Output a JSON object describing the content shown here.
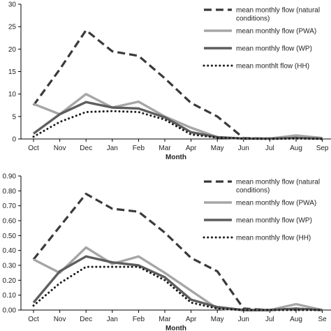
{
  "colors": {
    "natural": "#3a3a3a",
    "pwa": "#a6a6a6",
    "wp": "#5e5e5e",
    "hh": "#1a1a1a",
    "axis": "#000000"
  },
  "chart_data": [
    {
      "type": "line",
      "xlabel": "Month",
      "ylabel": "",
      "categories": [
        "Oct",
        "Nov",
        "Dec",
        "Jan",
        "Feb",
        "Mar",
        "Apr",
        "May",
        "Jun",
        "Jul",
        "Aug",
        "Sep"
      ],
      "ylim": [
        0,
        30
      ],
      "yticks": [
        "0",
        "5",
        "10",
        "15",
        "20",
        "25",
        "30"
      ],
      "legend_position": "top-right",
      "series": [
        {
          "name": "mean monthly flow (natural conditions)",
          "legend_lines": [
            "mean monthly flow (natural",
            "conditions)"
          ],
          "style": "dashed",
          "values": [
            7.5,
            15.5,
            24.2,
            19.5,
            18.5,
            13.5,
            8.0,
            5.0,
            0.2,
            0.1,
            0.3,
            0.1
          ]
        },
        {
          "name": "mean monthly flow (PWA)",
          "legend_lines": [
            "mean monthly flow (PWA)"
          ],
          "style": "light",
          "values": [
            7.8,
            5.5,
            10.0,
            7.0,
            8.3,
            5.0,
            2.5,
            0.4,
            0.1,
            0.1,
            0.8,
            0.2
          ]
        },
        {
          "name": "mean monthly flow (WP)",
          "legend_lines": [
            "mean monthly flow (WP)"
          ],
          "style": "dark",
          "values": [
            1.2,
            5.5,
            8.2,
            7.0,
            6.8,
            4.8,
            1.5,
            0.4,
            0.1,
            0.1,
            0.2,
            0.1
          ]
        },
        {
          "name": "mean monthlt flow (HH)",
          "legend_lines": [
            "mean monthlt flow (HH)"
          ],
          "style": "dotted",
          "values": [
            0.5,
            3.8,
            6.0,
            6.2,
            6.0,
            4.3,
            1.0,
            0.3,
            0.1,
            0.0,
            0.1,
            0.0
          ]
        }
      ]
    },
    {
      "type": "line",
      "xlabel": "Month",
      "ylabel": "",
      "categories": [
        "Oct",
        "Nov",
        "Dec",
        "Jan",
        "Feb",
        "Mar",
        "Apr",
        "May",
        "Jun",
        "Jul",
        "Aug",
        "Se"
      ],
      "ylim": [
        0,
        0.9
      ],
      "yticks": [
        "0.00",
        "0.10",
        "0.20",
        "0.30",
        "0.40",
        "0.50",
        "0.60",
        "0.70",
        "0.80",
        "0.90"
      ],
      "legend_position": "top-right",
      "series": [
        {
          "name": "mean monthly flow (natural conditions)",
          "legend_lines": [
            "mean monthly flow (natural",
            "conditions)"
          ],
          "style": "dashed",
          "values": [
            0.34,
            0.56,
            0.78,
            0.68,
            0.66,
            0.52,
            0.35,
            0.26,
            0.01,
            0.0,
            0.01,
            0.0
          ]
        },
        {
          "name": "mean monthly flow (PWA)",
          "legend_lines": [
            "mean monthly flow (PWA)"
          ],
          "style": "light",
          "values": [
            0.34,
            0.25,
            0.42,
            0.31,
            0.36,
            0.25,
            0.13,
            0.01,
            0.0,
            0.0,
            0.04,
            0.0
          ]
        },
        {
          "name": "mean monthly flow (WP)",
          "legend_lines": [
            "mean monthly flow (WP)"
          ],
          "style": "dark",
          "values": [
            0.05,
            0.26,
            0.36,
            0.32,
            0.3,
            0.22,
            0.07,
            0.02,
            0.0,
            0.0,
            0.01,
            0.0
          ]
        },
        {
          "name": "mean monthly flow (HH)",
          "legend_lines": [
            "mean monthly flow (HH)"
          ],
          "style": "dotted",
          "values": [
            0.03,
            0.18,
            0.29,
            0.29,
            0.29,
            0.2,
            0.05,
            0.01,
            0.0,
            0.0,
            0.0,
            0.0
          ]
        }
      ]
    }
  ]
}
